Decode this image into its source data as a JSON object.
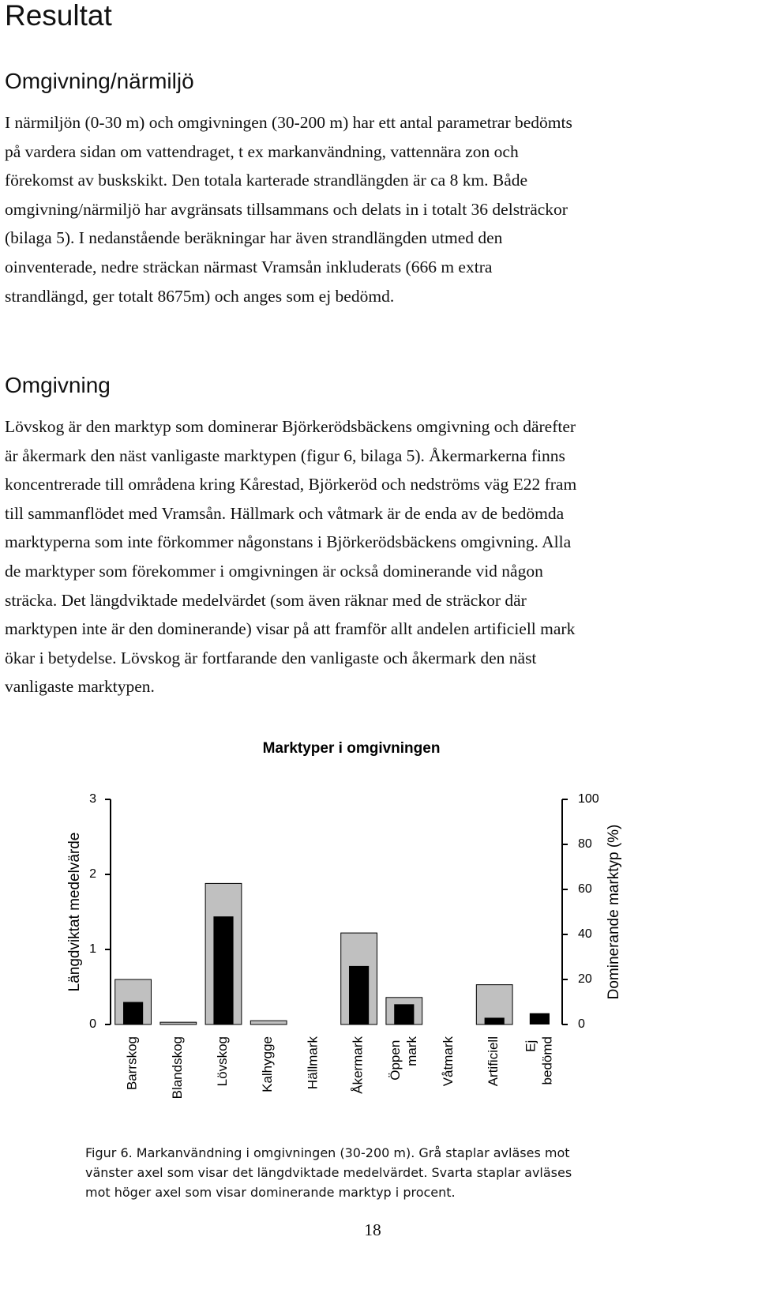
{
  "title": "Resultat",
  "sections": [
    {
      "heading": "Omgivning/närmiljö",
      "lines": [
        "I närmiljön (0-30 m) och omgivningen (30-200 m) har ett antal parametrar bedömts",
        "på vardera sidan om vattendraget, t ex markanvändning, vattennära zon och",
        "förekomst av buskskikt. Den totala karterade strandlängden är ca 8 km. Både",
        "omgivning/närmiljö har avgränsats tillsammans och delats in i totalt 36 delsträckor",
        "(bilaga 5). I nedanstående beräkningar har även strandlängden utmed den",
        "oinventerade, nedre sträckan närmast Vramsån inkluderats (666 m extra",
        "strandlängd, ger totalt 8675m) och anges som ej bedömd."
      ]
    },
    {
      "heading": "Omgivning",
      "lines": [
        "Lövskog är den marktyp som dominerar Björkerödsbäckens omgivning och därefter",
        "är åkermark den näst vanligaste marktypen (figur 6, bilaga 5). Åkermarkerna finns",
        "koncentrerade till områdena kring Kårestad, Björkeröd och nedströms väg E22 fram",
        "till sammanflödet med Vramsån. Hällmark och våtmark är de enda av de bedömda",
        "marktyperna som inte förkommer någonstans i Björkerödsbäckens omgivning. Alla",
        "de marktyper som förekommer i omgivningen är också dominerande vid någon",
        "sträcka. Det längdviktade medelvärdet (som även räknar med de sträckor där",
        "marktypen inte är den dominerande) visar på att framför allt andelen artificiell mark",
        "ökar i betydelse. Lövskog är fortfarande den vanligaste och åkermark den näst",
        "vanligaste marktypen."
      ]
    }
  ],
  "chart_data": {
    "type": "bar",
    "title": "Marktyper i omgivningen",
    "categories": [
      "Barrskog",
      "Blandskog",
      "Lövskog",
      "Kalhygge",
      "Hällmark",
      "Åkermark",
      "Öppen mark",
      "Våtmark",
      "Artificiell",
      "Ej bedömd"
    ],
    "series": [
      {
        "color": "#c0c0c0",
        "values": [
          0.6,
          0.03,
          1.88,
          0.05,
          0,
          1.22,
          0.36,
          0,
          0.53,
          0
        ]
      },
      {
        "color": "#000000",
        "axis": "y2",
        "values": [
          10,
          0,
          48,
          0,
          0,
          26,
          9,
          0,
          3,
          5
        ]
      }
    ],
    "ylabel": "Längdviktat medelvärde",
    "ylim": [
      0,
      3
    ],
    "yticks": [
      0,
      1,
      2,
      3
    ],
    "y2label": "Dominerande marktyp (%)",
    "y2lim": [
      0,
      100
    ],
    "y2ticks": [
      0,
      20,
      40,
      60,
      80,
      100
    ]
  },
  "caption": [
    "Figur 6. Markanvändning i omgivningen (30-200 m). Grå staplar avläses mot",
    "vänster axel som visar det längdviktade medelvärdet. Svarta staplar avläses",
    "mot höger axel som visar dominerande marktyp i procent."
  ],
  "page_number": "18"
}
